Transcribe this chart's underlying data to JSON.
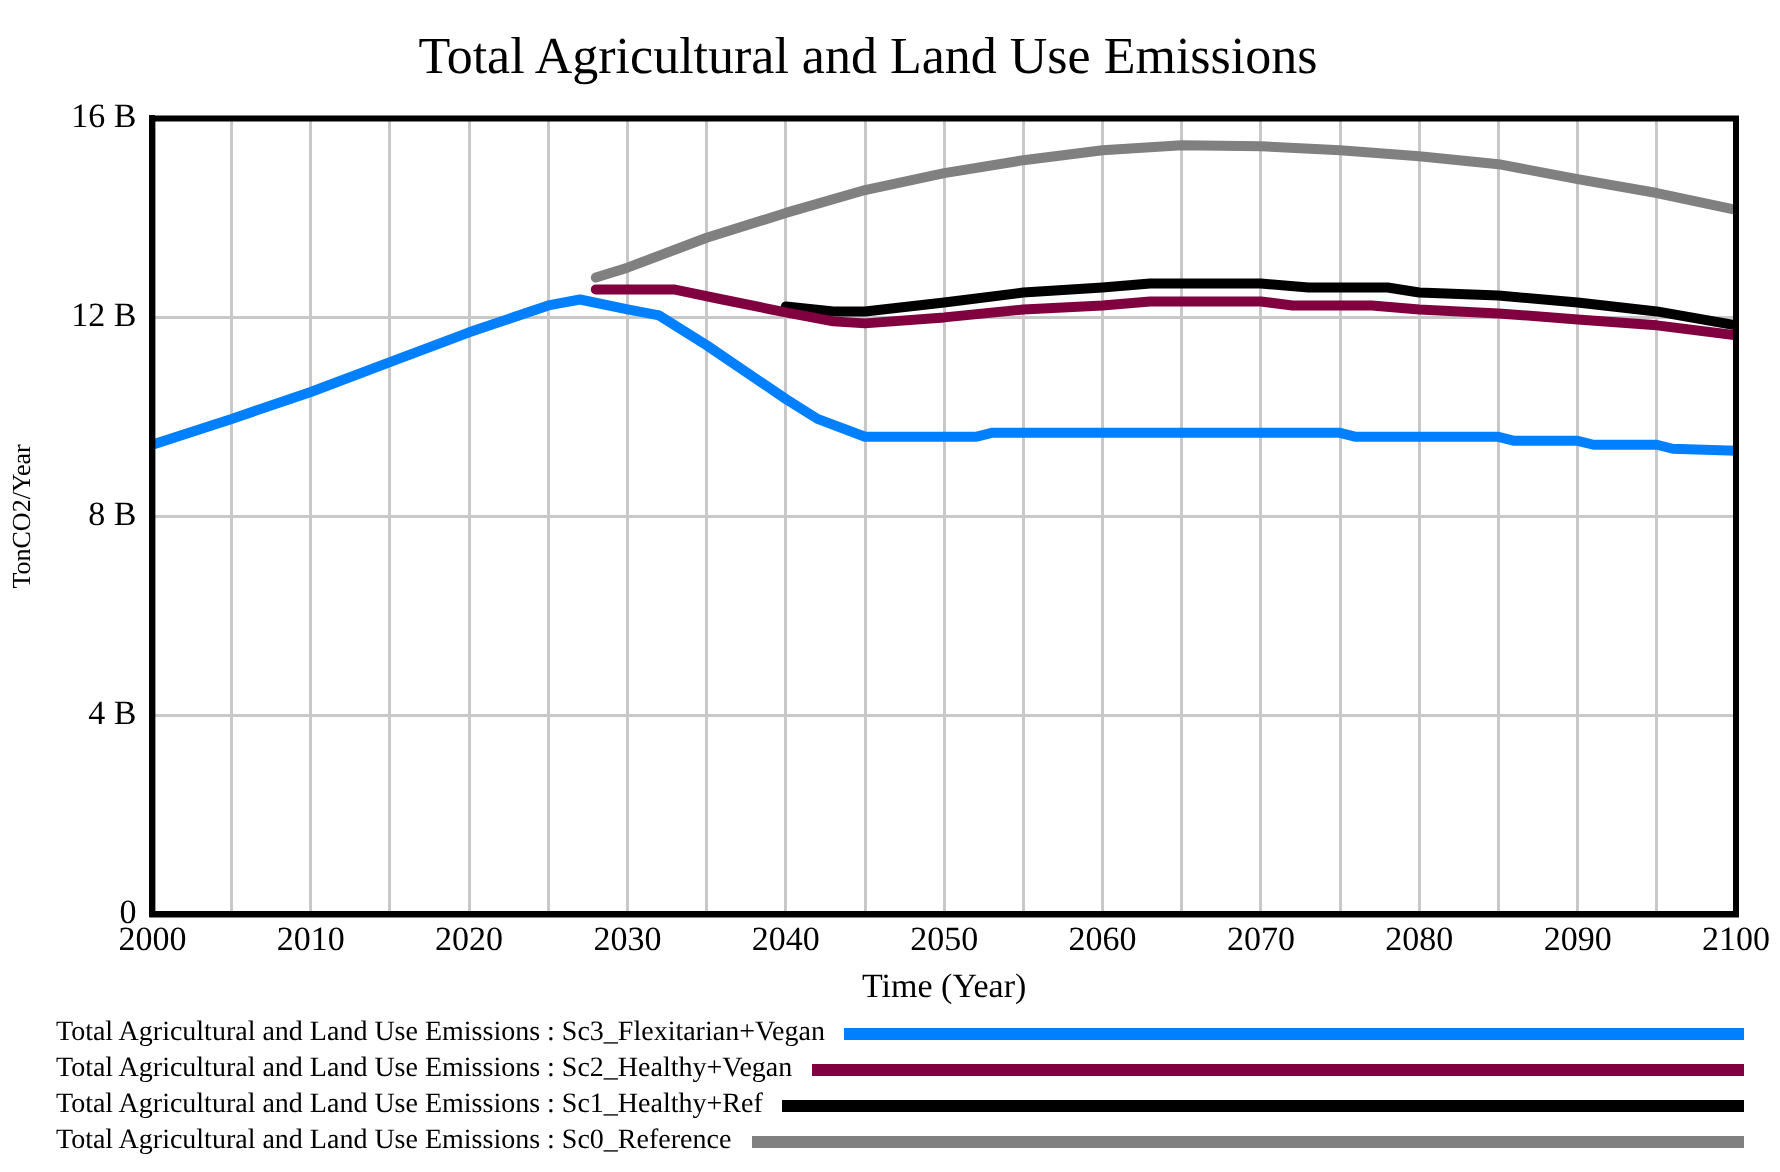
{
  "chart_data": {
    "type": "line",
    "title": "Total Agricultural and Land Use Emissions",
    "xlabel": "Time (Year)",
    "ylabel": "TonCO2/Year",
    "xlim": [
      2000,
      2100
    ],
    "ylim": [
      0,
      16
    ],
    "xticks": [
      2000,
      {
        "value": 2005,
        "label": null
      },
      2010,
      {
        "value": 2015,
        "label": null
      },
      2020,
      {
        "value": 2025,
        "label": null
      },
      2030,
      {
        "value": 2035,
        "label": null
      },
      2040,
      {
        "value": 2045,
        "label": null
      },
      2050,
      {
        "value": 2055,
        "label": null
      },
      2060,
      {
        "value": 2065,
        "label": null
      },
      2070,
      {
        "value": 2075,
        "label": null
      },
      2080,
      {
        "value": 2085,
        "label": null
      },
      2090,
      {
        "value": 2095,
        "label": null
      },
      2100
    ],
    "yticks": [
      {
        "value": 0,
        "label": "0"
      },
      {
        "value": 4,
        "label": "4 B"
      },
      {
        "value": 8,
        "label": "8 B"
      },
      {
        "value": 12,
        "label": "12 B"
      },
      {
        "value": 16,
        "label": "16 B"
      }
    ],
    "grid": true,
    "legend": "bottom",
    "marker": "none",
    "line_style": "solid",
    "series": [
      {
        "name": "Total Agricultural and Land Use Emissions : Sc3_Flexitarian+Vegan",
        "color": "#0080ff",
        "x": [
          2000,
          2005,
          2010,
          2015,
          2020,
          2025,
          2027,
          2030,
          2032,
          2035,
          2040,
          2042,
          2045,
          2052,
          2053,
          2075,
          2076,
          2085,
          2086,
          2090,
          2091,
          2095,
          2096,
          2100
        ],
        "values": [
          9.44,
          9.96,
          10.5,
          11.1,
          11.7,
          12.24,
          12.36,
          12.16,
          12.04,
          11.44,
          10.36,
          9.96,
          9.6,
          9.6,
          9.68,
          9.68,
          9.6,
          9.6,
          9.52,
          9.52,
          9.44,
          9.44,
          9.36,
          9.32
        ]
      },
      {
        "name": "Total Agricultural and Land Use Emissions : Sc2_Healthy+Vegan",
        "color": "#800040",
        "x": [
          2028,
          2033,
          2036,
          2040,
          2043,
          2045,
          2050,
          2055,
          2060,
          2063,
          2070,
          2072,
          2077,
          2080,
          2085,
          2090,
          2095,
          2100
        ],
        "values": [
          12.56,
          12.56,
          12.36,
          12.1,
          11.92,
          11.88,
          12.0,
          12.16,
          12.24,
          12.32,
          12.32,
          12.24,
          12.24,
          12.16,
          12.08,
          11.96,
          11.84,
          11.64
        ]
      },
      {
        "name": "Total Agricultural and Land Use Emissions : Sc1_Healthy+Ref",
        "color": "#000000",
        "x": [
          2040,
          2043,
          2045,
          2050,
          2055,
          2060,
          2063,
          2070,
          2073,
          2078,
          2080,
          2085,
          2090,
          2095,
          2100
        ],
        "values": [
          12.22,
          12.12,
          12.12,
          12.3,
          12.5,
          12.6,
          12.68,
          12.68,
          12.6,
          12.6,
          12.5,
          12.44,
          12.3,
          12.12,
          11.84
        ]
      },
      {
        "name": "Total Agricultural and Land Use Emissions : Sc0_Reference",
        "color": "#808080",
        "x": [
          2028,
          2030,
          2035,
          2040,
          2045,
          2050,
          2055,
          2060,
          2065,
          2070,
          2075,
          2080,
          2085,
          2090,
          2095,
          2100
        ],
        "values": [
          12.8,
          13.0,
          13.6,
          14.1,
          14.56,
          14.9,
          15.16,
          15.36,
          15.46,
          15.44,
          15.36,
          15.24,
          15.08,
          14.78,
          14.5,
          14.16
        ]
      }
    ]
  }
}
